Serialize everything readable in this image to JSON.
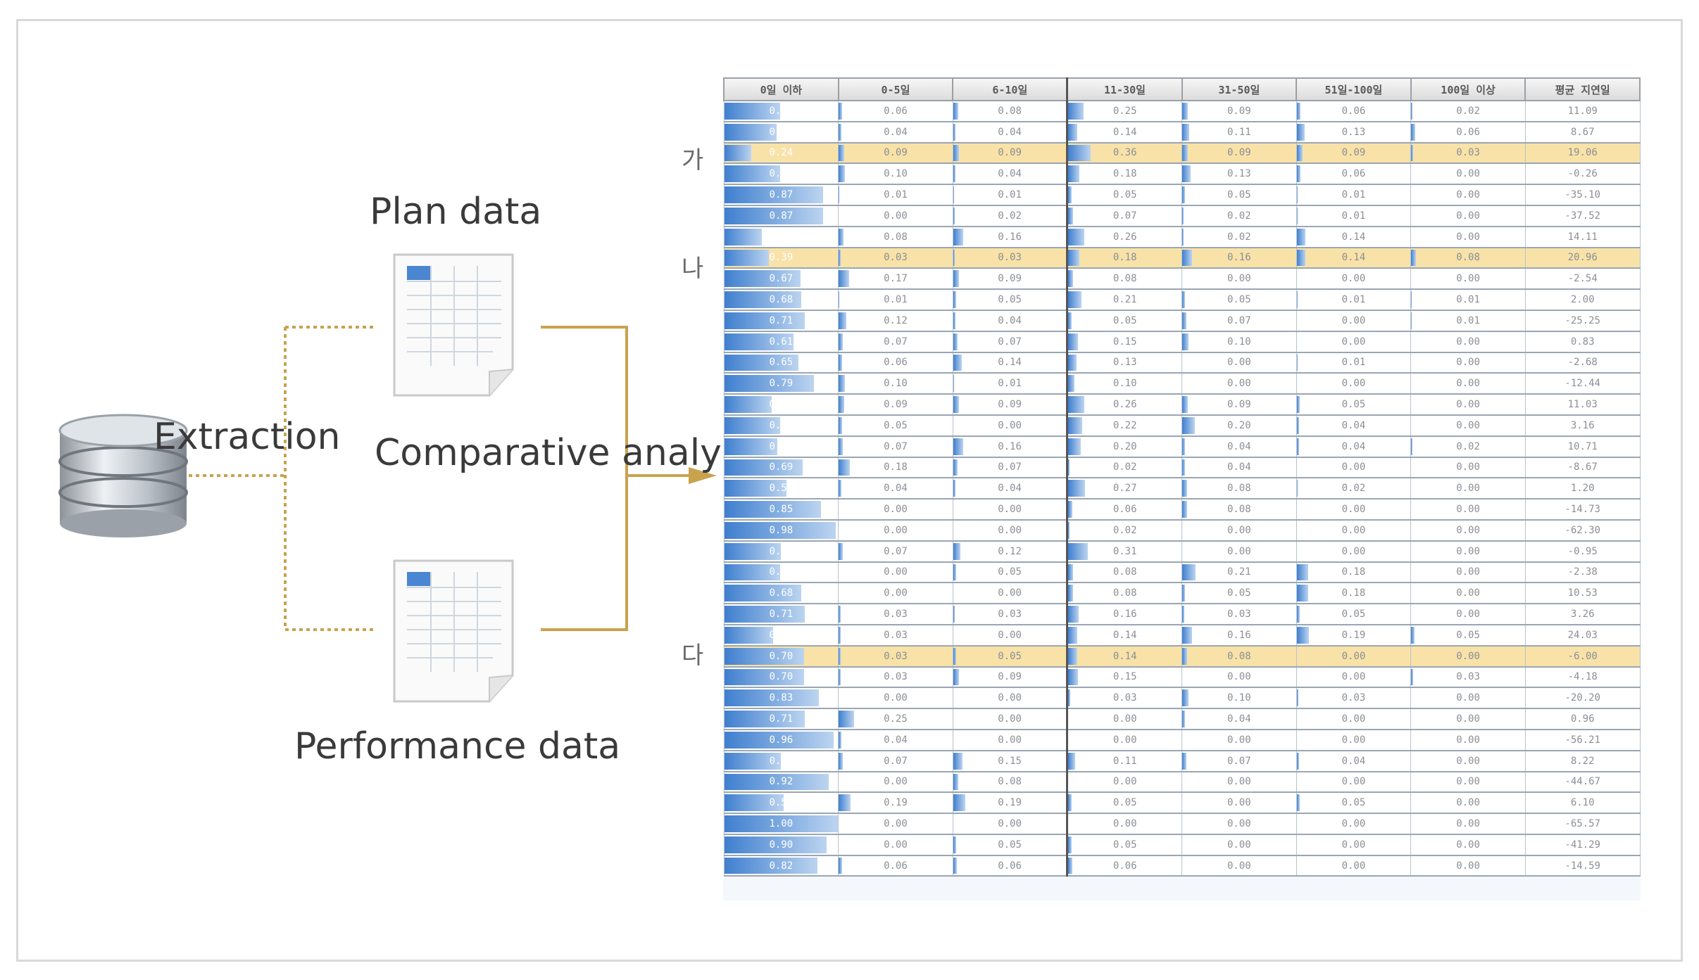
{
  "labels": {
    "plan": "Plan data",
    "extraction": "Extraction",
    "comparative": "Comparative analysis",
    "performance": "Performance data"
  },
  "markers": [
    "가",
    "나",
    "다"
  ],
  "colors": {
    "wire": "#c9a24e",
    "highlight": "#f8e2a8",
    "bar": "#3f7fcf"
  },
  "icons": {
    "database": "database-icon",
    "spreadsheet": "spreadsheet-icon",
    "arrow": "arrow-right-icon"
  },
  "table": {
    "headers": [
      "0일 이하",
      "0-5일",
      "6-10일",
      "11-30일",
      "31-50일",
      "51일-100일",
      "100일 이상",
      "평균 지연일"
    ],
    "highlight_rows": [
      2,
      7,
      26
    ],
    "rows": [
      [
        "0.49",
        "0.06",
        "0.08",
        "0.25",
        "0.09",
        "0.06",
        "0.02",
        "11.09"
      ],
      [
        "0.46",
        "0.04",
        "0.04",
        "0.14",
        "0.11",
        "0.13",
        "0.06",
        "8.67"
      ],
      [
        "0.24",
        "0.09",
        "0.09",
        "0.36",
        "0.09",
        "0.09",
        "0.03",
        "19.06"
      ],
      [
        "0.49",
        "0.10",
        "0.04",
        "0.18",
        "0.13",
        "0.06",
        "0.00",
        "-0.26"
      ],
      [
        "0.87",
        "0.01",
        "0.01",
        "0.05",
        "0.05",
        "0.01",
        "0.00",
        "-35.10"
      ],
      [
        "0.87",
        "0.00",
        "0.02",
        "0.07",
        "0.02",
        "0.01",
        "0.00",
        "-37.52"
      ],
      [
        "0.33",
        "0.08",
        "0.16",
        "0.26",
        "0.02",
        "0.14",
        "0.00",
        "14.11"
      ],
      [
        "0.39",
        "0.03",
        "0.03",
        "0.18",
        "0.16",
        "0.14",
        "0.08",
        "20.96"
      ],
      [
        "0.67",
        "0.17",
        "0.09",
        "0.08",
        "0.00",
        "0.00",
        "0.00",
        "-2.54"
      ],
      [
        "0.68",
        "0.01",
        "0.05",
        "0.21",
        "0.05",
        "0.01",
        "0.01",
        "2.00"
      ],
      [
        "0.71",
        "0.12",
        "0.04",
        "0.05",
        "0.07",
        "0.00",
        "0.01",
        "-25.25"
      ],
      [
        "0.61",
        "0.07",
        "0.07",
        "0.15",
        "0.10",
        "0.00",
        "0.00",
        "0.83"
      ],
      [
        "0.65",
        "0.06",
        "0.14",
        "0.13",
        "0.00",
        "0.01",
        "0.00",
        "-2.68"
      ],
      [
        "0.79",
        "0.10",
        "0.01",
        "0.10",
        "0.00",
        "0.00",
        "0.00",
        "-12.44"
      ],
      [
        "0.42",
        "0.09",
        "0.09",
        "0.26",
        "0.09",
        "0.05",
        "0.00",
        "11.03"
      ],
      [
        "0.49",
        "0.05",
        "0.00",
        "0.22",
        "0.20",
        "0.04",
        "0.00",
        "3.16"
      ],
      [
        "0.47",
        "0.07",
        "0.16",
        "0.20",
        "0.04",
        "0.04",
        "0.02",
        "10.71"
      ],
      [
        "0.69",
        "0.18",
        "0.07",
        "0.02",
        "0.04",
        "0.00",
        "0.00",
        "-8.67"
      ],
      [
        "0.55",
        "0.04",
        "0.04",
        "0.27",
        "0.08",
        "0.02",
        "0.00",
        "1.20"
      ],
      [
        "0.85",
        "0.00",
        "0.00",
        "0.06",
        "0.08",
        "0.00",
        "0.00",
        "-14.73"
      ],
      [
        "0.98",
        "0.00",
        "0.00",
        "0.02",
        "0.00",
        "0.00",
        "0.00",
        "-62.30"
      ],
      [
        "0.50",
        "0.07",
        "0.12",
        "0.31",
        "0.00",
        "0.00",
        "0.00",
        "-0.95"
      ],
      [
        "0.49",
        "0.00",
        "0.05",
        "0.08",
        "0.21",
        "0.18",
        "0.00",
        "-2.38"
      ],
      [
        "0.68",
        "0.00",
        "0.00",
        "0.08",
        "0.05",
        "0.18",
        "0.00",
        "10.53"
      ],
      [
        "0.71",
        "0.03",
        "0.03",
        "0.16",
        "0.03",
        "0.05",
        "0.00",
        "3.26"
      ],
      [
        "0.43",
        "0.03",
        "0.00",
        "0.14",
        "0.16",
        "0.19",
        "0.05",
        "24.03"
      ],
      [
        "0.70",
        "0.03",
        "0.05",
        "0.14",
        "0.08",
        "0.00",
        "0.00",
        "-6.00"
      ],
      [
        "0.70",
        "0.03",
        "0.09",
        "0.15",
        "0.00",
        "0.00",
        "0.03",
        "-4.18"
      ],
      [
        "0.83",
        "0.00",
        "0.00",
        "0.03",
        "0.10",
        "0.03",
        "0.00",
        "-20.20"
      ],
      [
        "0.71",
        "0.25",
        "0.00",
        "0.00",
        "0.04",
        "0.00",
        "0.00",
        "0.96"
      ],
      [
        "0.96",
        "0.04",
        "0.00",
        "0.00",
        "0.00",
        "0.00",
        "0.00",
        "-56.21"
      ],
      [
        "0.50",
        "0.07",
        "0.15",
        "0.11",
        "0.07",
        "0.04",
        "0.00",
        "8.22"
      ],
      [
        "0.92",
        "0.00",
        "0.08",
        "0.00",
        "0.00",
        "0.00",
        "0.00",
        "-44.67"
      ],
      [
        "0.52",
        "0.19",
        "0.19",
        "0.05",
        "0.00",
        "0.05",
        "0.00",
        "6.10"
      ],
      [
        "1.00",
        "0.00",
        "0.00",
        "0.00",
        "0.00",
        "0.00",
        "0.00",
        "-65.57"
      ],
      [
        "0.90",
        "0.00",
        "0.05",
        "0.05",
        "0.00",
        "0.00",
        "0.00",
        "-41.29"
      ],
      [
        "0.82",
        "0.06",
        "0.06",
        "0.06",
        "0.00",
        "0.00",
        "0.00",
        "-14.59"
      ]
    ]
  }
}
